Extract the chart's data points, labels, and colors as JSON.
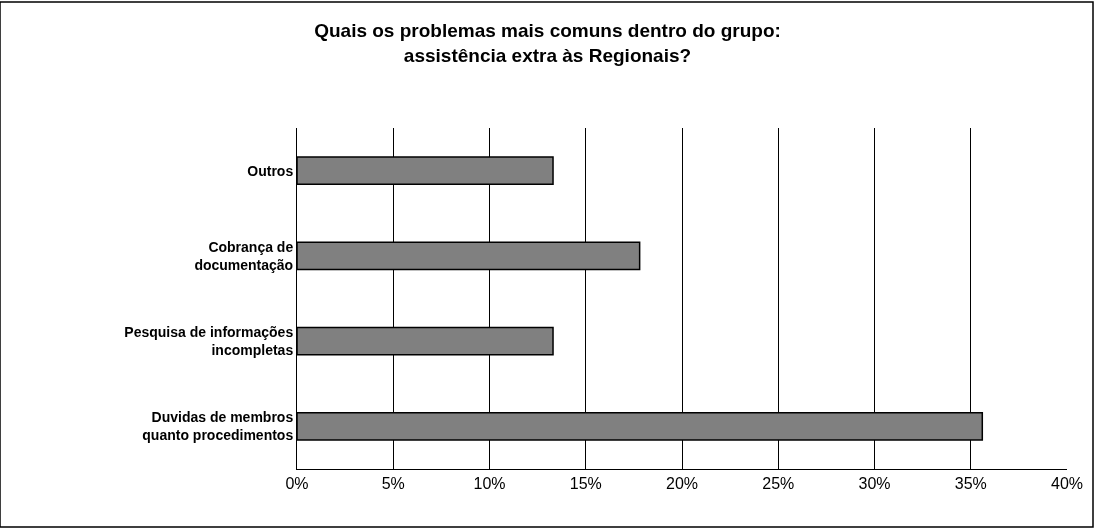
{
  "chart_data": {
    "type": "bar",
    "orientation": "horizontal",
    "title": "Quais os problemas mais comuns dentro do grupo: assistência extra às Regionais?",
    "categories": [
      "Outros",
      "Cobrança de documentação",
      "Pesquisa de informações incompletas",
      "Duvidas de membros quanto procedimentos"
    ],
    "values": [
      13.3,
      17.8,
      13.3,
      35.6
    ],
    "color": "#808080",
    "xlim": [
      0,
      40
    ],
    "xticks": [
      {
        "value": 0,
        "label": "0%"
      },
      {
        "value": 5,
        "label": "5%"
      },
      {
        "value": 10,
        "label": "10%"
      },
      {
        "value": 15,
        "label": "15%"
      },
      {
        "value": 20,
        "label": "20%"
      },
      {
        "value": 25,
        "label": "25%"
      },
      {
        "value": 30,
        "label": "30%"
      },
      {
        "value": 35,
        "label": "35%"
      },
      {
        "value": 40,
        "label": "40%"
      }
    ],
    "grid": "x"
  }
}
